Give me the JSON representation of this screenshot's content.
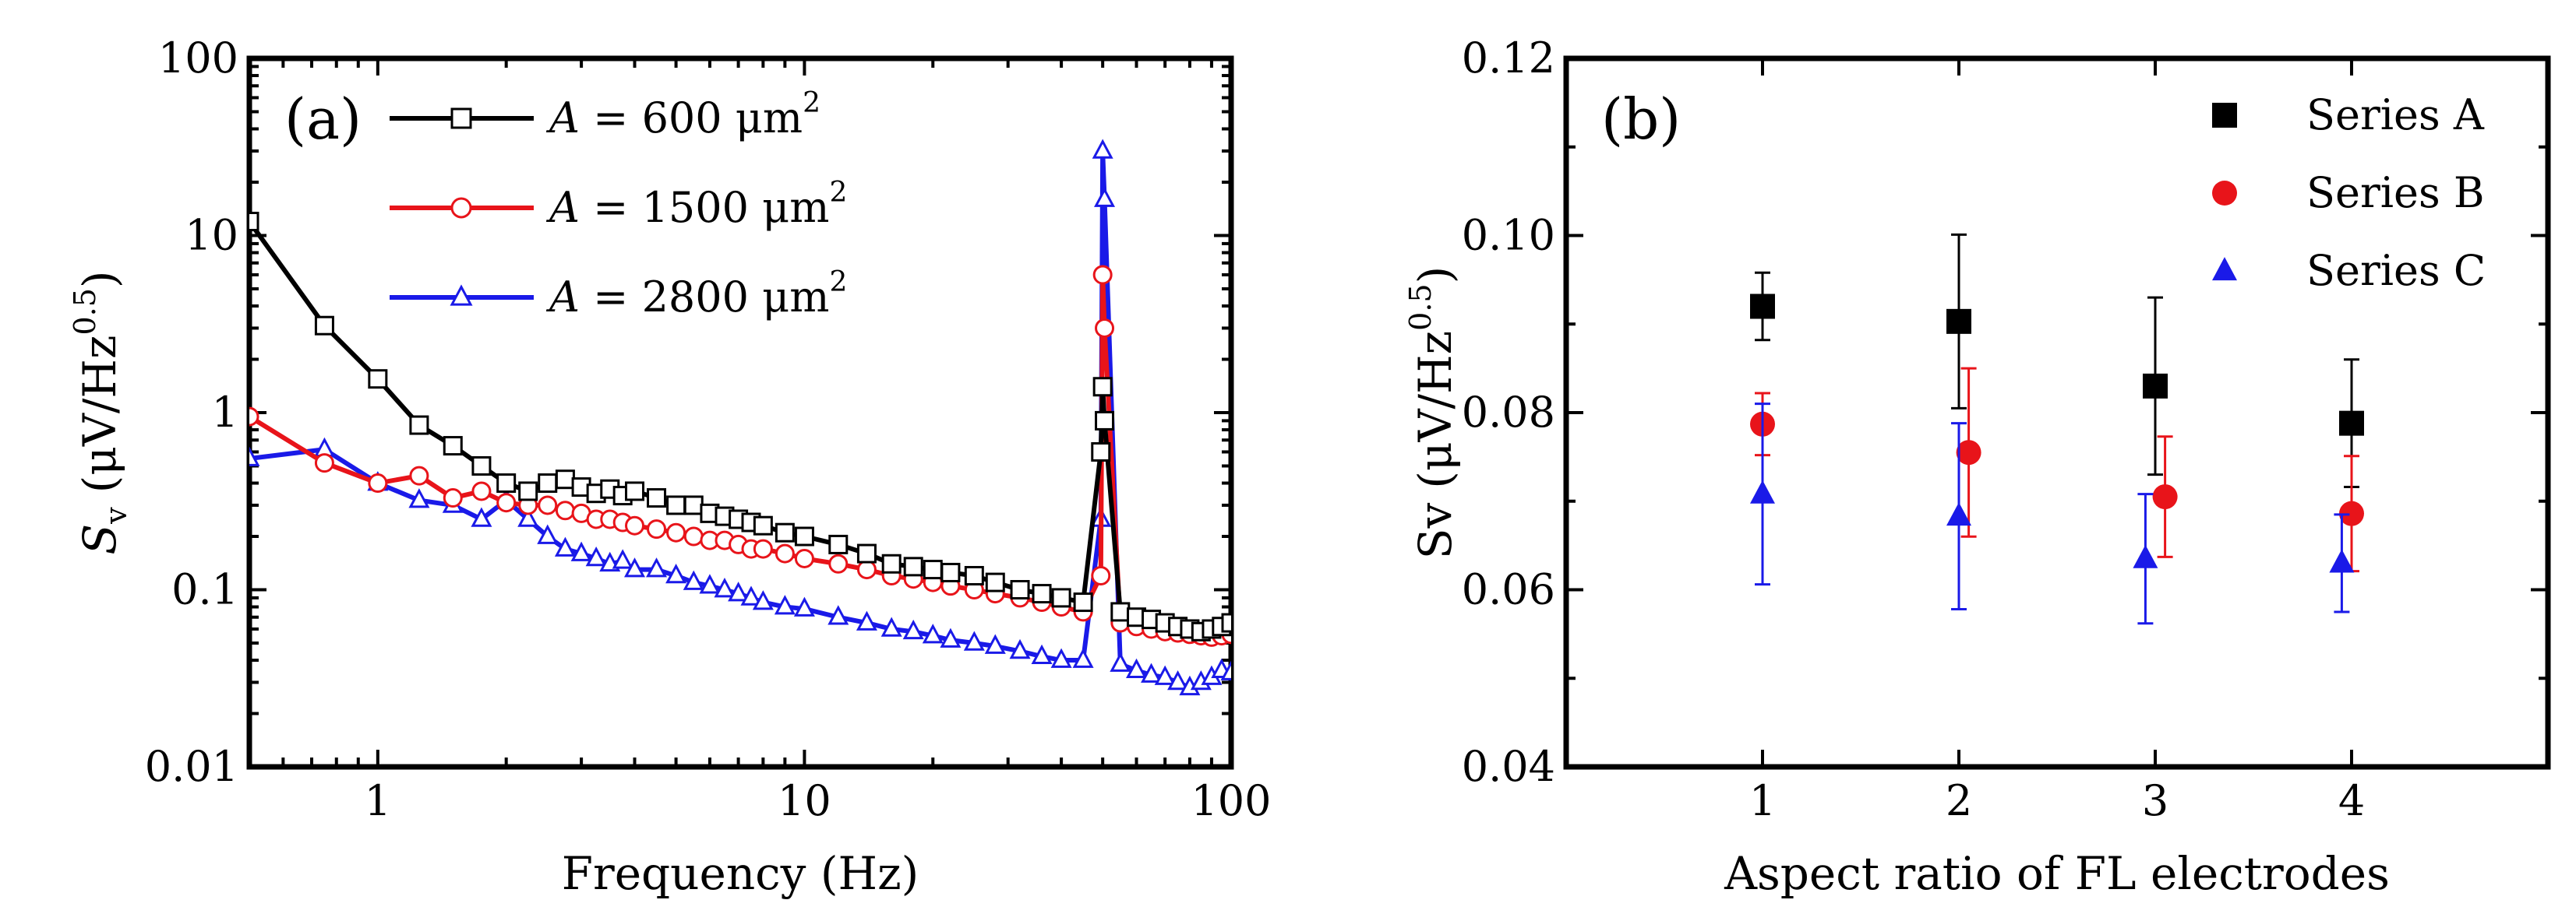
{
  "chart_data": [
    {
      "type": "line",
      "panel_label": "(a)",
      "xscale": "log",
      "yscale": "log",
      "xlim": [
        0.5,
        100
      ],
      "ylim": [
        0.01,
        100
      ],
      "xlabel": "Frequency (Hz)",
      "ylabel": {
        "sym": "S",
        "sub": "v",
        "unit": "(μV/Hz",
        "sup": "0.5",
        "close": ")"
      },
      "xticks": [
        {
          "v": 1,
          "label": "1"
        },
        {
          "v": 10,
          "label": "10"
        },
        {
          "v": 100,
          "label": "100"
        }
      ],
      "yticks": [
        {
          "v": 0.01,
          "label": "0.01"
        },
        {
          "v": 0.1,
          "label": "0.1"
        },
        {
          "v": 1,
          "label": "1"
        },
        {
          "v": 10,
          "label": "10"
        },
        {
          "v": 100,
          "label": "100"
        }
      ],
      "series": [
        {
          "name": "A = 600 μm2",
          "legend_var": "A",
          "legend_eq": " = 600 μm",
          "legend_sup": "2",
          "color": "#000000",
          "marker": "square",
          "x": [
            0.5,
            0.75,
            1.0,
            1.25,
            1.5,
            1.75,
            2.0,
            2.25,
            2.5,
            2.75,
            3.0,
            3.25,
            3.5,
            3.75,
            4.0,
            4.5,
            5,
            5.5,
            6,
            6.5,
            7,
            7.5,
            8,
            9,
            10,
            12,
            14,
            16,
            18,
            20,
            22,
            25,
            28,
            32,
            36,
            40,
            45,
            49.5,
            50,
            50.5,
            55,
            60,
            65,
            70,
            75,
            80,
            85,
            90,
            95,
            100
          ],
          "y": [
            12,
            3.1,
            1.55,
            0.85,
            0.65,
            0.5,
            0.4,
            0.36,
            0.4,
            0.42,
            0.38,
            0.35,
            0.37,
            0.34,
            0.36,
            0.33,
            0.3,
            0.3,
            0.27,
            0.26,
            0.25,
            0.24,
            0.23,
            0.21,
            0.2,
            0.18,
            0.16,
            0.14,
            0.135,
            0.13,
            0.125,
            0.12,
            0.11,
            0.1,
            0.095,
            0.09,
            0.085,
            0.6,
            1.4,
            0.9,
            0.075,
            0.07,
            0.068,
            0.065,
            0.062,
            0.06,
            0.058,
            0.06,
            0.062,
            0.065
          ]
        },
        {
          "name": "A = 1500 μm2",
          "legend_var": "A",
          "legend_eq": " = 1500 μm",
          "legend_sup": "2",
          "color": "#e8141a",
          "marker": "circle",
          "x": [
            0.5,
            0.75,
            1.0,
            1.25,
            1.5,
            1.75,
            2.0,
            2.25,
            2.5,
            2.75,
            3.0,
            3.25,
            3.5,
            3.75,
            4.0,
            4.5,
            5,
            5.5,
            6,
            6.5,
            7,
            7.5,
            8,
            9,
            10,
            12,
            14,
            16,
            18,
            20,
            22,
            25,
            28,
            32,
            36,
            40,
            45,
            49.5,
            50,
            50.5,
            55,
            60,
            65,
            70,
            75,
            80,
            85,
            90,
            95,
            100
          ],
          "y": [
            0.95,
            0.52,
            0.4,
            0.44,
            0.33,
            0.36,
            0.31,
            0.3,
            0.3,
            0.28,
            0.27,
            0.25,
            0.25,
            0.24,
            0.23,
            0.22,
            0.21,
            0.2,
            0.19,
            0.19,
            0.18,
            0.17,
            0.17,
            0.16,
            0.15,
            0.14,
            0.13,
            0.12,
            0.115,
            0.11,
            0.105,
            0.1,
            0.095,
            0.09,
            0.085,
            0.08,
            0.075,
            0.12,
            6,
            3,
            0.065,
            0.062,
            0.06,
            0.058,
            0.057,
            0.056,
            0.055,
            0.054,
            0.055,
            0.056
          ]
        },
        {
          "name": "A = 2800 μm2",
          "legend_var": "A",
          "legend_eq": " = 2800 μm",
          "legend_sup": "2",
          "color": "#1a1ae8",
          "marker": "triangle",
          "x": [
            0.5,
            0.75,
            1.0,
            1.25,
            1.5,
            1.75,
            2.0,
            2.25,
            2.5,
            2.75,
            3.0,
            3.25,
            3.5,
            3.75,
            4.0,
            4.5,
            5,
            5.5,
            6,
            6.5,
            7,
            7.5,
            8,
            9,
            10,
            12,
            14,
            16,
            18,
            20,
            22,
            25,
            28,
            32,
            36,
            40,
            45,
            49.5,
            50,
            50.5,
            55,
            60,
            65,
            70,
            75,
            80,
            85,
            90,
            95,
            100
          ],
          "y": [
            0.55,
            0.62,
            0.4,
            0.32,
            0.3,
            0.25,
            0.32,
            0.25,
            0.2,
            0.17,
            0.16,
            0.15,
            0.14,
            0.145,
            0.13,
            0.13,
            0.12,
            0.11,
            0.105,
            0.1,
            0.095,
            0.09,
            0.085,
            0.08,
            0.078,
            0.07,
            0.065,
            0.06,
            0.058,
            0.055,
            0.052,
            0.05,
            0.048,
            0.045,
            0.042,
            0.04,
            0.04,
            0.25,
            30,
            16,
            0.038,
            0.035,
            0.033,
            0.032,
            0.03,
            0.028,
            0.03,
            0.032,
            0.035,
            0.034
          ]
        }
      ]
    },
    {
      "type": "scatter",
      "panel_label": "(b)",
      "xlim": [
        0,
        5
      ],
      "ylim": [
        0.04,
        0.12
      ],
      "xlabel": "Aspect ratio of FL electrodes",
      "ylabel": {
        "sym": "Sv",
        "unit": "(μV/Hz",
        "sup": "0.5",
        "close": ")"
      },
      "xticks": [
        {
          "v": 1,
          "label": "1"
        },
        {
          "v": 2,
          "label": "2"
        },
        {
          "v": 3,
          "label": "3"
        },
        {
          "v": 4,
          "label": "4"
        }
      ],
      "yticks": [
        {
          "v": 0.04,
          "label": "0.04"
        },
        {
          "v": 0.06,
          "label": "0.06"
        },
        {
          "v": 0.08,
          "label": "0.08"
        },
        {
          "v": 0.1,
          "label": "0.10"
        },
        {
          "v": 0.12,
          "label": "0.12"
        }
      ],
      "series": [
        {
          "name": "Series A",
          "color": "#000000",
          "marker": "square",
          "x": [
            1,
            2,
            3,
            4
          ],
          "y": [
            0.092,
            0.0903,
            0.083,
            0.0788
          ],
          "yerr": [
            0.0038,
            0.0098,
            0.01,
            0.0072
          ]
        },
        {
          "name": "Series B",
          "color": "#e8141a",
          "marker": "circle",
          "x": [
            1.0,
            2.05,
            3.05,
            4.0
          ],
          "y": [
            0.0787,
            0.0755,
            0.0705,
            0.0686
          ],
          "yerr": [
            0.0035,
            0.0095,
            0.0068,
            0.0065
          ]
        },
        {
          "name": "Series C",
          "color": "#1a1ae8",
          "marker": "triangle",
          "x": [
            1.0,
            2.0,
            2.95,
            3.95
          ],
          "y": [
            0.0708,
            0.0683,
            0.0635,
            0.063
          ],
          "yerr": [
            0.0102,
            0.0105,
            0.0073,
            0.0055
          ]
        }
      ]
    }
  ]
}
